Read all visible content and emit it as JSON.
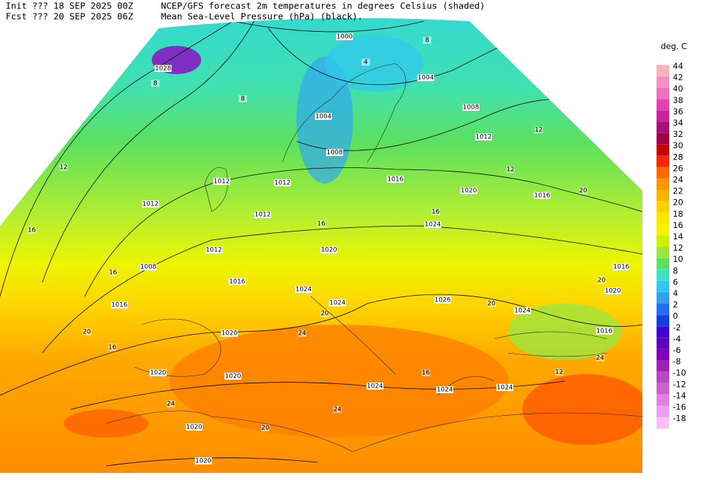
{
  "header": {
    "init": "Init  ??? 18 SEP 2025 00Z",
    "fcst": "Fcst ??? 20 SEP 2025 06Z",
    "title": "NCEP/GFS forecast 2m temperatures in degrees Celsius (shaded)",
    "subtitle": "Mean Sea-Level Pressure (hPa) (black)."
  },
  "legend": {
    "unit": "deg. C",
    "levels": [
      44,
      42,
      40,
      38,
      36,
      34,
      32,
      30,
      28,
      26,
      24,
      22,
      20,
      18,
      16,
      14,
      12,
      10,
      8,
      6,
      4,
      2,
      0,
      -2,
      -4,
      -6,
      -8,
      -10,
      -12,
      -14,
      -16,
      -18
    ],
    "colors": [
      "#f8b4b8",
      "#f590c0",
      "#f070c0",
      "#e840b4",
      "#cc20a0",
      "#a81078",
      "#a00040",
      "#c80000",
      "#ff2400",
      "#ff6800",
      "#ff9800",
      "#ffb400",
      "#ffd000",
      "#ffe800",
      "#f4f400",
      "#ccf000",
      "#9ce640",
      "#5ee05e",
      "#40e0c4",
      "#30c8f0",
      "#30a0f0",
      "#2070f0",
      "#1040e0",
      "#4000d8",
      "#6000c0",
      "#8000b8",
      "#a020b8",
      "#b848c0",
      "#cc60cc",
      "#e080e0",
      "#f0a0f0",
      "#f8c0f8"
    ]
  },
  "map": {
    "isobar_labels": [
      1000,
      1004,
      1008,
      1012,
      1016,
      1020,
      1024,
      1028,
      1004,
      1008,
      1012,
      1012,
      1016,
      1012,
      1012,
      1012,
      1008,
      1020,
      1016,
      1024,
      1024,
      1026,
      1024,
      1020,
      1016,
      1016,
      1016,
      1020,
      1020,
      1020,
      1024,
      1024,
      1024,
      1020,
      1020
    ],
    "temperature_labels": [
      8,
      4,
      8,
      8,
      12,
      12,
      12,
      20,
      16,
      16,
      16,
      16,
      20,
      20,
      20,
      16,
      20,
      24,
      24,
      20,
      24,
      16,
      12,
      24
    ]
  }
}
